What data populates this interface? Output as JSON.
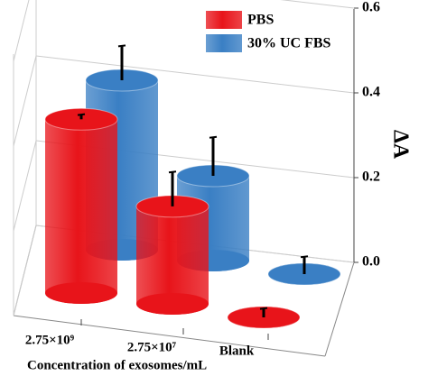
{
  "chart_data": {
    "type": "bar3d",
    "y_label": "ΔA",
    "x_label": "Concentration of exosomes/mL",
    "categories": [
      "2.75×10⁹",
      "2.75×10⁷",
      "Blank"
    ],
    "series": [
      {
        "name": "PBS",
        "color": "#e8141a",
        "values": [
          0.41,
          0.23,
          0.0
        ],
        "errors": [
          0.01,
          0.08,
          0.02
        ]
      },
      {
        "name": "30% UC FBS",
        "color": "#3a7fc4",
        "values": [
          0.4,
          0.2,
          0.0
        ],
        "errors": [
          0.08,
          0.09,
          0.04
        ]
      }
    ],
    "ylim": [
      0,
      0.6
    ],
    "yticks": [
      {
        "value": 0,
        "label": "0.0"
      },
      {
        "value": 0.2,
        "label": "0.2"
      },
      {
        "value": 0.4,
        "label": "0.4"
      },
      {
        "value": 0.6,
        "label": "0.6"
      }
    ],
    "grid": true,
    "legend": "top"
  }
}
